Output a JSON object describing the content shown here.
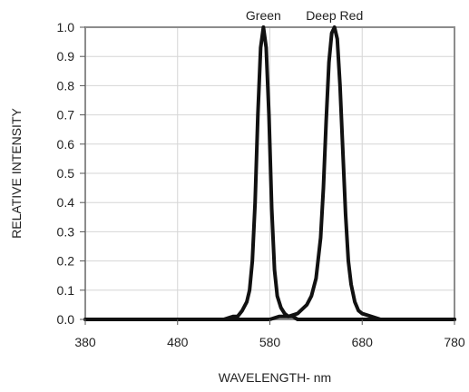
{
  "chart_data": {
    "type": "line",
    "title": "",
    "xlabel": "WAVELENGTH- nm",
    "ylabel": "RELATIVE INTENSITY",
    "xlim": [
      380,
      780
    ],
    "ylim": [
      0,
      1.0
    ],
    "x_ticks": [
      "380",
      "480",
      "580",
      "680",
      "780"
    ],
    "y_ticks": [
      "0.0",
      "0.1",
      "0.2",
      "0.3",
      "0.4",
      "0.5",
      "0.6",
      "0.7",
      "0.8",
      "0.9",
      "1.0"
    ],
    "grid": true,
    "annotations": [
      {
        "text": "Green",
        "x": 573
      },
      {
        "text": "Deep Red",
        "x": 650
      }
    ],
    "series": [
      {
        "x": [
          380,
          500,
          520,
          530,
          540,
          545,
          550,
          555,
          558,
          561,
          564,
          567,
          570,
          573,
          576,
          579,
          582,
          585,
          588,
          592,
          596,
          600,
          605,
          610,
          620,
          630,
          640,
          660,
          780
        ],
        "y": [
          0.0,
          0.0,
          0.0,
          0.0,
          0.01,
          0.01,
          0.03,
          0.06,
          0.1,
          0.2,
          0.4,
          0.7,
          0.93,
          1.0,
          0.93,
          0.7,
          0.38,
          0.17,
          0.08,
          0.04,
          0.02,
          0.01,
          0.01,
          0.0,
          0.0,
          0.0,
          0.0,
          0.0,
          0.0
        ]
      },
      {
        "x": [
          380,
          560,
          580,
          590,
          600,
          610,
          620,
          625,
          630,
          635,
          638,
          641,
          644,
          647,
          650,
          653,
          656,
          659,
          662,
          665,
          668,
          672,
          676,
          680,
          690,
          700,
          720,
          780
        ],
        "y": [
          0.0,
          0.0,
          0.0,
          0.01,
          0.01,
          0.02,
          0.05,
          0.08,
          0.14,
          0.28,
          0.45,
          0.68,
          0.88,
          0.98,
          1.0,
          0.96,
          0.8,
          0.58,
          0.36,
          0.2,
          0.12,
          0.06,
          0.03,
          0.02,
          0.01,
          0.0,
          0.0,
          0.0
        ]
      }
    ]
  }
}
